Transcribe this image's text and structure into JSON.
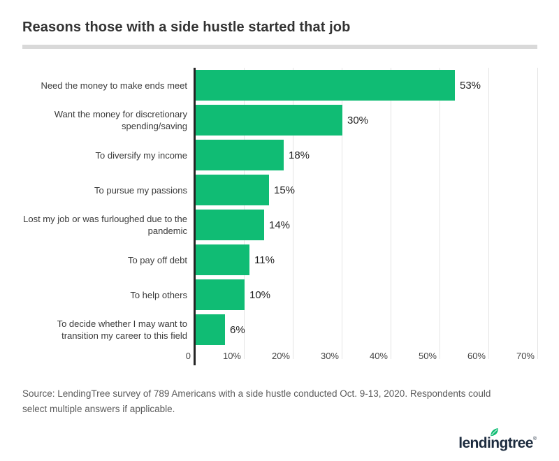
{
  "title": "Reasons those with a side hustle started that job",
  "source_note": "Source: LendingTree survey of 789 Americans with a side hustle conducted Oct. 9-13, 2020. Respondents could select multiple answers if applicable.",
  "logo": {
    "wordmark": "lendingtree",
    "registered_mark": "®"
  },
  "colors": {
    "bar_green": "#10bc74",
    "logo_navy": "#1c2b3e",
    "axis_line": "#252525",
    "gridline": "#e4e4e4",
    "divider": "#d9d9d9"
  },
  "chart_data": {
    "type": "bar",
    "orientation": "horizontal",
    "title": "Reasons those with a side hustle started that job",
    "categories": [
      "Need the money to make ends meet",
      "Want the money for discretionary spending/saving",
      "To diversify my income",
      "To pursue my passions",
      "Lost my job or was furloughed due to the pandemic",
      "To pay off debt",
      "To help others",
      "To decide whether I may want to transition my career to this field"
    ],
    "values": [
      53,
      30,
      18,
      15,
      14,
      11,
      10,
      6
    ],
    "data_labels": [
      "53%",
      "30%",
      "18%",
      "15%",
      "14%",
      "11%",
      "10%",
      "6%"
    ],
    "xlabel": "",
    "ylabel": "",
    "xlim": [
      0,
      70
    ],
    "x_ticks": [
      {
        "value": 0,
        "label": "0"
      },
      {
        "value": 10,
        "label": "10%"
      },
      {
        "value": 20,
        "label": "20%"
      },
      {
        "value": 30,
        "label": "30%"
      },
      {
        "value": 40,
        "label": "40%"
      },
      {
        "value": 50,
        "label": "50%"
      },
      {
        "value": 60,
        "label": "60%"
      },
      {
        "value": 70,
        "label": "70%"
      }
    ],
    "grid": "vertical-only",
    "legend": false,
    "bar_color": "#10bc74"
  }
}
